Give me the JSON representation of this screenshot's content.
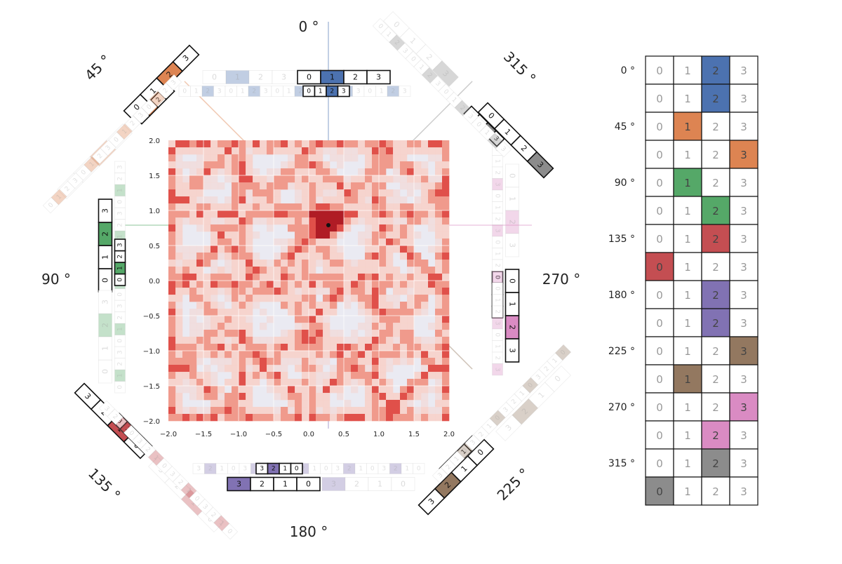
{
  "colors": {
    "blue": "#4c72b0",
    "orange": "#dd8452",
    "green": "#55a868",
    "red": "#c44e52",
    "purple": "#8172b3",
    "brown": "#937860",
    "pink": "#da8bc3",
    "gray": "#8c8c8c",
    "heatmap_bg": "#eaeaf2",
    "heatmap_low": "#f8d0c8",
    "heatmap_mid": "#f09a8c",
    "heatmap_high": "#e0504a",
    "heatmap_peak": "#b01c25"
  },
  "angle_labels": [
    "0 °",
    "45 °",
    "90 °",
    "135 °",
    "180 °",
    "225 °",
    "270 °",
    "315 °"
  ],
  "cell_digits": [
    "0",
    "1",
    "2",
    "3"
  ],
  "heatmap": {
    "xticks": [
      "−2.0",
      "−1.5",
      "−1.0",
      "−0.5",
      "0.0",
      "0.5",
      "1.0",
      "1.5",
      "2.0"
    ],
    "yticks": [
      "2.0",
      "1.5",
      "1.0",
      "0.5",
      "0.0",
      "−0.5",
      "−1.0",
      "−1.5",
      "−2.0"
    ],
    "xlim": [
      -2.0,
      2.0
    ],
    "ylim": [
      -2.0,
      2.0
    ],
    "marker": {
      "x": 0.28,
      "y": 0.79
    }
  },
  "table": {
    "row_labels": [
      "0 °",
      "",
      "45 °",
      "",
      "90 °",
      "",
      "135 °",
      "",
      "180 °",
      "",
      "225 °",
      "",
      "270 °",
      "",
      "315 °",
      ""
    ],
    "highlight_index": [
      2,
      2,
      1,
      3,
      1,
      2,
      2,
      0,
      2,
      2,
      3,
      1,
      3,
      2,
      2,
      0
    ],
    "highlight_color": [
      "blue",
      "blue",
      "orange",
      "orange",
      "green",
      "green",
      "red",
      "red",
      "purple",
      "purple",
      "brown",
      "brown",
      "pink",
      "pink",
      "gray",
      "gray"
    ]
  }
}
